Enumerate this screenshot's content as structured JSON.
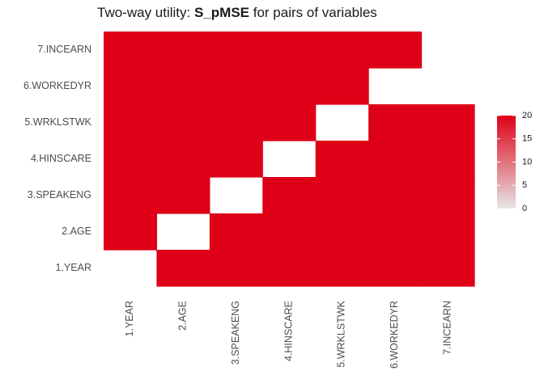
{
  "chart_data": {
    "type": "heatmap",
    "title_prefix": "Two-way utility: ",
    "title_bold": "S_pMSE",
    "title_suffix": " for pairs of variables",
    "x_categories": [
      "1.YEAR",
      "2.AGE",
      "3.SPEAKENG",
      "4.HINSCARE",
      "5.WRKLSTWK",
      "6.WORKEDYR",
      "7.INCEARN"
    ],
    "y_categories": [
      "1.YEAR",
      "2.AGE",
      "3.SPEAKENG",
      "4.HINSCARE",
      "5.WRKLSTWK",
      "6.WORKEDYR",
      "7.INCEARN"
    ],
    "cells": [
      {
        "x": "1.YEAR",
        "y": "2.AGE",
        "value": 20
      },
      {
        "x": "1.YEAR",
        "y": "3.SPEAKENG",
        "value": 20
      },
      {
        "x": "1.YEAR",
        "y": "4.HINSCARE",
        "value": 20
      },
      {
        "x": "1.YEAR",
        "y": "5.WRKLSTWK",
        "value": 20
      },
      {
        "x": "1.YEAR",
        "y": "6.WORKEDYR",
        "value": 20
      },
      {
        "x": "1.YEAR",
        "y": "7.INCEARN",
        "value": 20
      },
      {
        "x": "2.AGE",
        "y": "1.YEAR",
        "value": 20
      },
      {
        "x": "2.AGE",
        "y": "3.SPEAKENG",
        "value": 20
      },
      {
        "x": "2.AGE",
        "y": "4.HINSCARE",
        "value": 20
      },
      {
        "x": "2.AGE",
        "y": "5.WRKLSTWK",
        "value": 20
      },
      {
        "x": "2.AGE",
        "y": "6.WORKEDYR",
        "value": 20
      },
      {
        "x": "2.AGE",
        "y": "7.INCEARN",
        "value": 20
      },
      {
        "x": "3.SPEAKENG",
        "y": "1.YEAR",
        "value": 20
      },
      {
        "x": "3.SPEAKENG",
        "y": "2.AGE",
        "value": 20
      },
      {
        "x": "3.SPEAKENG",
        "y": "4.HINSCARE",
        "value": 20
      },
      {
        "x": "3.SPEAKENG",
        "y": "5.WRKLSTWK",
        "value": 20
      },
      {
        "x": "3.SPEAKENG",
        "y": "6.WORKEDYR",
        "value": 20
      },
      {
        "x": "3.SPEAKENG",
        "y": "7.INCEARN",
        "value": 20
      },
      {
        "x": "4.HINSCARE",
        "y": "1.YEAR",
        "value": 20
      },
      {
        "x": "4.HINSCARE",
        "y": "2.AGE",
        "value": 20
      },
      {
        "x": "4.HINSCARE",
        "y": "3.SPEAKENG",
        "value": 20
      },
      {
        "x": "4.HINSCARE",
        "y": "5.WRKLSTWK",
        "value": 20
      },
      {
        "x": "4.HINSCARE",
        "y": "6.WORKEDYR",
        "value": 20
      },
      {
        "x": "4.HINSCARE",
        "y": "7.INCEARN",
        "value": 20
      },
      {
        "x": "5.WRKLSTWK",
        "y": "1.YEAR",
        "value": 20
      },
      {
        "x": "5.WRKLSTWK",
        "y": "2.AGE",
        "value": 20
      },
      {
        "x": "5.WRKLSTWK",
        "y": "3.SPEAKENG",
        "value": 20
      },
      {
        "x": "5.WRKLSTWK",
        "y": "4.HINSCARE",
        "value": 20
      },
      {
        "x": "5.WRKLSTWK",
        "y": "6.WORKEDYR",
        "value": 20
      },
      {
        "x": "5.WRKLSTWK",
        "y": "7.INCEARN",
        "value": 20
      },
      {
        "x": "6.WORKEDYR",
        "y": "1.YEAR",
        "value": 20
      },
      {
        "x": "6.WORKEDYR",
        "y": "2.AGE",
        "value": 20
      },
      {
        "x": "6.WORKEDYR",
        "y": "3.SPEAKENG",
        "value": 20
      },
      {
        "x": "6.WORKEDYR",
        "y": "4.HINSCARE",
        "value": 20
      },
      {
        "x": "6.WORKEDYR",
        "y": "5.WRKLSTWK",
        "value": 20
      },
      {
        "x": "6.WORKEDYR",
        "y": "7.INCEARN",
        "value": 20
      },
      {
        "x": "7.INCEARN",
        "y": "1.YEAR",
        "value": 20
      },
      {
        "x": "7.INCEARN",
        "y": "2.AGE",
        "value": 20
      },
      {
        "x": "7.INCEARN",
        "y": "3.SPEAKENG",
        "value": 20
      },
      {
        "x": "7.INCEARN",
        "y": "4.HINSCARE",
        "value": 20
      },
      {
        "x": "7.INCEARN",
        "y": "5.WRKLSTWK",
        "value": 20
      }
    ],
    "legend": {
      "ticks": [
        0,
        5,
        10,
        15,
        20
      ],
      "range": [
        0,
        20
      ],
      "low_color": "#e6e6e6",
      "high_color": "#de0016",
      "placement": "right"
    },
    "grid": false
  }
}
